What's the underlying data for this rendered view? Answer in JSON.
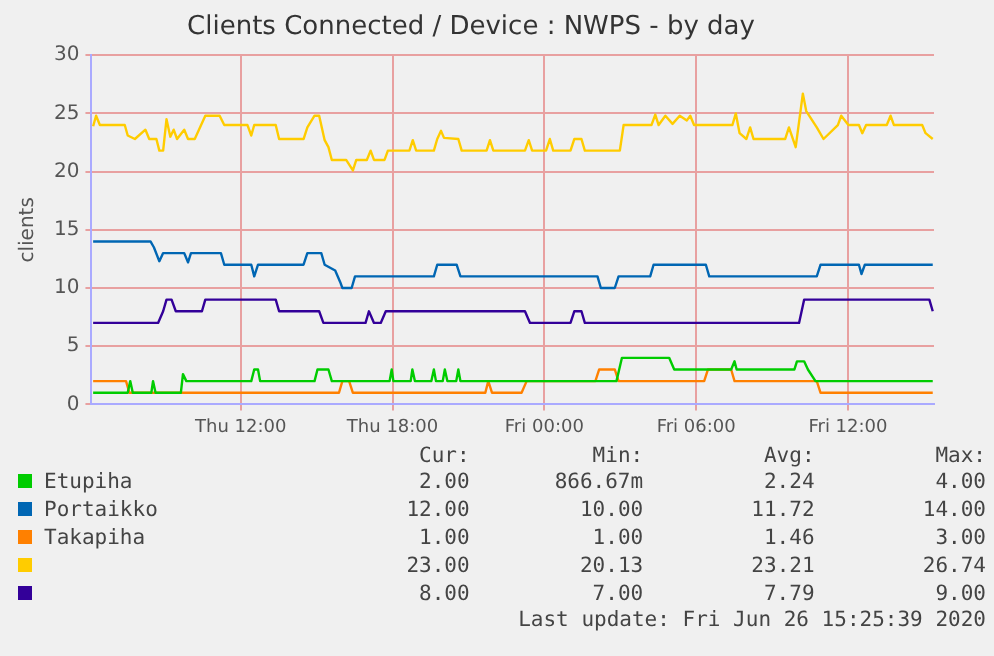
{
  "chart_data": {
    "type": "line",
    "title": "Clients Connected / Device : NWPS - by day",
    "ylabel": "clients",
    "xlim": [
      "2020-06-25T06:06",
      "2020-06-26T15:24"
    ],
    "xticks": [
      {
        "value": "2020-06-25T12:00",
        "label": "Thu 12:00"
      },
      {
        "value": "2020-06-25T18:00",
        "label": "Thu 18:00"
      },
      {
        "value": "2020-06-26T00:00",
        "label": "Fri 00:00"
      },
      {
        "value": "2020-06-26T06:00",
        "label": "Fri 06:00"
      },
      {
        "value": "2020-06-26T12:00",
        "label": "Fri 12:00"
      }
    ],
    "ylim": [
      0,
      30
    ],
    "yticks": [
      0,
      5,
      10,
      15,
      20,
      25,
      30
    ],
    "grid": true,
    "legend": "bottom",
    "marker": "none",
    "line_style": "solid",
    "series": [
      {
        "name": "Etupiha",
        "color": "#00cc00",
        "x": [
          "2020-06-25T06:10",
          "2020-06-25T07:32",
          "2020-06-25T07:38",
          "2020-06-25T07:44",
          "2020-06-25T08:28",
          "2020-06-25T08:32",
          "2020-06-25T08:38",
          "2020-06-25T09:38",
          "2020-06-25T09:43",
          "2020-06-25T09:51",
          "2020-06-25T12:25",
          "2020-06-25T12:32",
          "2020-06-25T12:41",
          "2020-06-25T12:46",
          "2020-06-25T14:55",
          "2020-06-25T15:02",
          "2020-06-25T15:28",
          "2020-06-25T15:36",
          "2020-06-25T17:53",
          "2020-06-25T17:58",
          "2020-06-25T18:02",
          "2020-06-25T18:43",
          "2020-06-25T18:47",
          "2020-06-25T18:53",
          "2020-06-25T19:32",
          "2020-06-25T19:38",
          "2020-06-25T19:43",
          "2020-06-25T19:59",
          "2020-06-25T20:04",
          "2020-06-25T20:10",
          "2020-06-25T20:31",
          "2020-06-25T20:36",
          "2020-06-25T20:41",
          "2020-06-26T02:51",
          "2020-06-26T03:04",
          "2020-06-26T04:56",
          "2020-06-26T05:08",
          "2020-06-26T07:23",
          "2020-06-26T07:31",
          "2020-06-26T07:36",
          "2020-06-26T09:53",
          "2020-06-26T09:59",
          "2020-06-26T10:16",
          "2020-06-26T10:25",
          "2020-06-26T10:43",
          "2020-06-26T15:21"
        ],
        "values": [
          1,
          1,
          2,
          1,
          1,
          2,
          1,
          1,
          2.6,
          2,
          2,
          3,
          3,
          2,
          2,
          3,
          3,
          2,
          2,
          3,
          2,
          2,
          3,
          2,
          2,
          3,
          2,
          2,
          3,
          2,
          2,
          3,
          2,
          2,
          4,
          4,
          3,
          3,
          3.7,
          3,
          3,
          3.7,
          3.7,
          3,
          2,
          2
        ]
      },
      {
        "name": "Portaikko",
        "color": "#0066b3",
        "x": [
          "2020-06-25T06:10",
          "2020-06-25T08:26",
          "2020-06-25T08:34",
          "2020-06-25T08:47",
          "2020-06-25T08:56",
          "2020-06-25T09:46",
          "2020-06-25T09:55",
          "2020-06-25T10:02",
          "2020-06-25T11:13",
          "2020-06-25T11:21",
          "2020-06-25T12:25",
          "2020-06-25T12:32",
          "2020-06-25T12:41",
          "2020-06-25T14:29",
          "2020-06-25T14:38",
          "2020-06-25T15:11",
          "2020-06-25T15:19",
          "2020-06-25T15:44",
          "2020-06-25T15:56",
          "2020-06-25T16:01",
          "2020-06-25T16:23",
          "2020-06-25T16:31",
          "2020-06-25T19:38",
          "2020-06-25T19:46",
          "2020-06-25T20:32",
          "2020-06-25T20:41",
          "2020-06-26T02:06",
          "2020-06-26T02:14",
          "2020-06-26T02:47",
          "2020-06-26T02:56",
          "2020-06-26T04:11",
          "2020-06-26T04:19",
          "2020-06-26T06:23",
          "2020-06-26T06:31",
          "2020-06-26T10:46",
          "2020-06-26T10:55",
          "2020-06-26T12:26",
          "2020-06-26T12:32",
          "2020-06-26T12:40",
          "2020-06-26T15:21"
        ],
        "values": [
          14,
          14,
          13.5,
          12.3,
          13,
          13,
          12.2,
          13,
          13,
          12,
          12,
          11,
          12,
          12,
          13,
          13,
          12,
          11.5,
          10.5,
          10,
          10,
          11,
          11,
          12,
          12,
          11,
          11,
          10,
          10,
          11,
          11,
          12,
          12,
          11,
          11,
          12,
          12,
          11.2,
          12,
          12
        ]
      },
      {
        "name": "Takapiha",
        "color": "#ff8000",
        "x": [
          "2020-06-25T06:10",
          "2020-06-25T07:28",
          "2020-06-25T07:36",
          "2020-06-25T15:53",
          "2020-06-25T16:01",
          "2020-06-25T16:17",
          "2020-06-25T16:26",
          "2020-06-25T21:40",
          "2020-06-25T21:47",
          "2020-06-25T21:56",
          "2020-06-25T23:06",
          "2020-06-25T23:18",
          "2020-06-26T02:01",
          "2020-06-26T02:10",
          "2020-06-26T02:47",
          "2020-06-26T02:56",
          "2020-06-26T06:19",
          "2020-06-26T06:28",
          "2020-06-26T07:23",
          "2020-06-26T07:31",
          "2020-06-26T10:46",
          "2020-06-26T10:55",
          "2020-06-26T15:21"
        ],
        "values": [
          2,
          2,
          1,
          1,
          2,
          2,
          1,
          1,
          2,
          1,
          1,
          2,
          2,
          3,
          3,
          2,
          2,
          3,
          3,
          2,
          2,
          1,
          1
        ]
      },
      {
        "color": "#ffcc00",
        "x": [
          "2020-06-25T06:10",
          "2020-06-25T06:17",
          "2020-06-25T06:26",
          "2020-06-25T07:25",
          "2020-06-25T07:32",
          "2020-06-25T07:49",
          "2020-06-25T08:14",
          "2020-06-25T08:23",
          "2020-06-25T08:40",
          "2020-06-25T08:47",
          "2020-06-25T08:56",
          "2020-06-25T09:04",
          "2020-06-25T09:13",
          "2020-06-25T09:21",
          "2020-06-25T09:29",
          "2020-06-25T09:46",
          "2020-06-25T09:55",
          "2020-06-25T10:11",
          "2020-06-25T10:36",
          "2020-06-25T11:10",
          "2020-06-25T11:21",
          "2020-06-25T12:16",
          "2020-06-25T12:25",
          "2020-06-25T12:32",
          "2020-06-25T13:23",
          "2020-06-25T13:31",
          "2020-06-25T14:29",
          "2020-06-25T14:38",
          "2020-06-25T14:55",
          "2020-06-25T15:06",
          "2020-06-25T15:19",
          "2020-06-25T15:28",
          "2020-06-25T15:36",
          "2020-06-25T16:10",
          "2020-06-25T16:26",
          "2020-06-25T16:34",
          "2020-06-25T16:59",
          "2020-06-25T17:08",
          "2020-06-25T17:16",
          "2020-06-25T17:41",
          "2020-06-25T17:49",
          "2020-06-25T18:40",
          "2020-06-25T18:48",
          "2020-06-25T18:56",
          "2020-06-25T19:38",
          "2020-06-25T19:46",
          "2020-06-25T19:55",
          "2020-06-25T20:02",
          "2020-06-25T20:36",
          "2020-06-25T20:44",
          "2020-06-25T21:43",
          "2020-06-25T21:51",
          "2020-06-25T21:59",
          "2020-06-25T23:14",
          "2020-06-25T23:23",
          "2020-06-25T23:31",
          "2020-06-26T00:04",
          "2020-06-26T00:13",
          "2020-06-26T00:21",
          "2020-06-26T01:02",
          "2020-06-26T01:11",
          "2020-06-26T01:28",
          "2020-06-26T01:36",
          "2020-06-26T02:59",
          "2020-06-26T03:08",
          "2020-06-26T04:14",
          "2020-06-26T04:23",
          "2020-06-26T04:31",
          "2020-06-26T04:47",
          "2020-06-26T05:04",
          "2020-06-26T05:21",
          "2020-06-26T05:38",
          "2020-06-26T05:46",
          "2020-06-26T05:55",
          "2020-06-26T07:26",
          "2020-06-26T07:34",
          "2020-06-26T07:43",
          "2020-06-26T07:59",
          "2020-06-26T08:08",
          "2020-06-26T08:16",
          "2020-06-26T09:31",
          "2020-06-26T09:40",
          "2020-06-26T09:56",
          "2020-06-26T10:13",
          "2020-06-26T10:21",
          "2020-06-26T10:46",
          "2020-06-26T11:02",
          "2020-06-26T11:36",
          "2020-06-26T11:44",
          "2020-06-26T12:01",
          "2020-06-26T12:26",
          "2020-06-26T12:34",
          "2020-06-26T12:43",
          "2020-06-26T13:32",
          "2020-06-26T13:41",
          "2020-06-26T13:49",
          "2020-06-26T14:56",
          "2020-06-26T15:04",
          "2020-06-26T15:21"
        ],
        "values": [
          23.9,
          24.8,
          24,
          24,
          23.1,
          22.8,
          23.6,
          22.8,
          22.8,
          21.8,
          21.8,
          24.5,
          23,
          23.6,
          22.8,
          23.6,
          22.8,
          22.8,
          24.8,
          24.8,
          24,
          24,
          23.1,
          24,
          24,
          22.8,
          22.8,
          23.8,
          24.8,
          24.8,
          22.7,
          22.1,
          21,
          21,
          20.1,
          21,
          21,
          21.8,
          21,
          21,
          21.8,
          21.8,
          22.7,
          21.8,
          21.8,
          22.8,
          23.5,
          22.9,
          22.8,
          21.8,
          21.8,
          22.7,
          21.8,
          21.8,
          22.7,
          21.8,
          21.8,
          22.8,
          21.8,
          21.8,
          22.8,
          22.8,
          21.8,
          21.8,
          24,
          24,
          24.9,
          24,
          24.8,
          24.1,
          24.8,
          24.4,
          24.8,
          24,
          24,
          25,
          23.3,
          22.8,
          23.8,
          22.8,
          22.8,
          23.8,
          22.1,
          26.7,
          25.2,
          23.8,
          22.8,
          24,
          24.8,
          24,
          24,
          23.3,
          24,
          24,
          24.8,
          24,
          24,
          23.3,
          22.8
        ]
      },
      {
        "color": "#330099",
        "x": [
          "2020-06-25T06:10",
          "2020-06-25T08:44",
          "2020-06-25T08:56",
          "2020-06-25T09:04",
          "2020-06-25T09:16",
          "2020-06-25T09:26",
          "2020-06-25T10:28",
          "2020-06-25T10:36",
          "2020-06-25T13:23",
          "2020-06-25T13:31",
          "2020-06-25T15:06",
          "2020-06-25T15:16",
          "2020-06-25T16:56",
          "2020-06-25T17:04",
          "2020-06-25T17:16",
          "2020-06-25T17:32",
          "2020-06-25T17:44",
          "2020-06-25T23:14",
          "2020-06-25T23:26",
          "2020-06-26T01:02",
          "2020-06-26T01:11",
          "2020-06-26T01:28",
          "2020-06-26T01:36",
          "2020-06-26T10:04",
          "2020-06-26T10:16",
          "2020-06-26T15:13",
          "2020-06-26T15:21"
        ],
        "values": [
          7,
          7,
          8,
          9,
          9,
          8,
          8,
          9,
          9,
          8,
          8,
          7,
          7,
          8,
          7,
          7,
          8,
          8,
          7,
          7,
          8,
          8,
          7,
          7,
          9,
          9,
          8
        ]
      }
    ],
    "annotations": [
      "Cur:",
      "Min:",
      "Avg:",
      "Max:",
      "2.00",
      "866.67m",
      "2.24",
      "4.00",
      "12.00",
      "10.00",
      "11.72",
      "14.00",
      "1.00",
      "1.00",
      "1.46",
      "3.00",
      "23.00",
      "20.13",
      "23.21",
      "26.74",
      "8.00",
      "7.00",
      "7.79",
      "9.00",
      "Last update: Fri Jun 26 15:25:39 2020"
    ]
  }
}
